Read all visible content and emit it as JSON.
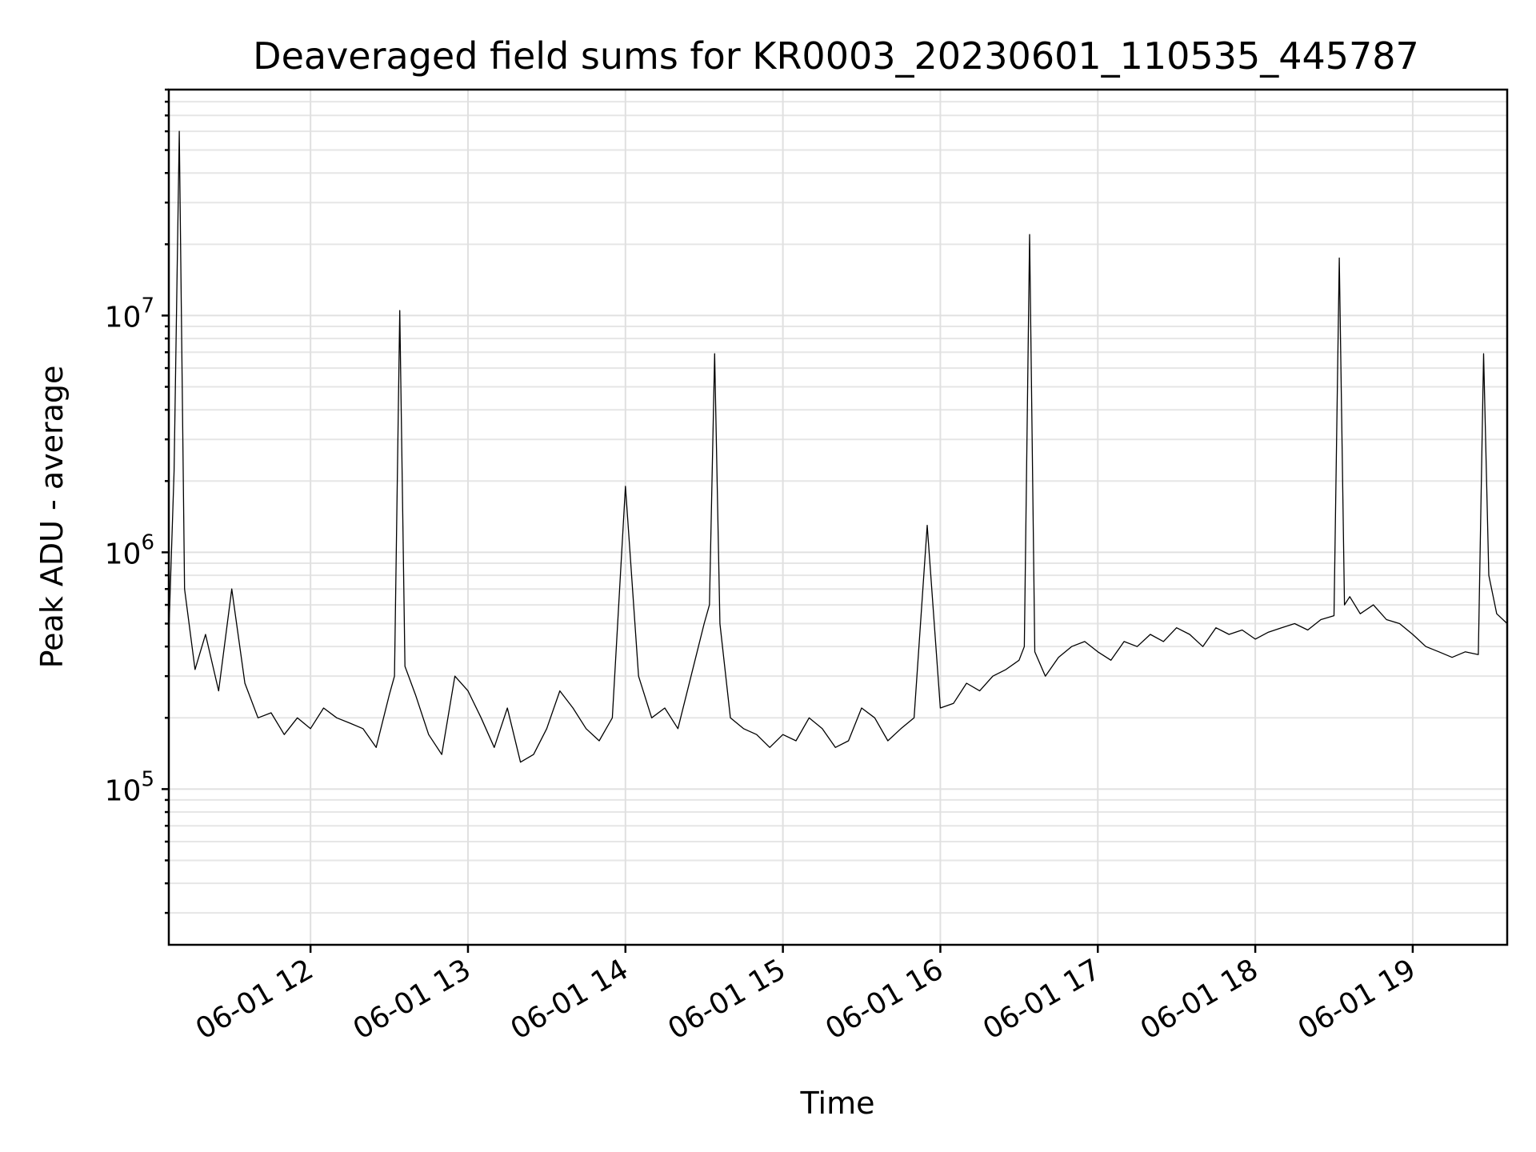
{
  "chart_data": {
    "type": "line",
    "title": "Deaveraged field sums for KR0003_20230601_110535_445787",
    "xlabel": "Time",
    "ylabel": "Peak ADU - average",
    "yscale": "log",
    "xlim": [
      "2023-06-01 11:06",
      "2023-06-01 19:36"
    ],
    "ylim": [
      22000,
      90000000
    ],
    "grid": true,
    "x_tick_labels": [
      "06-01 12",
      "06-01 13",
      "06-01 14",
      "06-01 15",
      "06-01 16",
      "06-01 17",
      "06-01 18",
      "06-01 19"
    ],
    "x_tick_values": [
      "2023-06-01 12:00",
      "2023-06-01 13:00",
      "2023-06-01 14:00",
      "2023-06-01 15:00",
      "2023-06-01 16:00",
      "2023-06-01 17:00",
      "2023-06-01 18:00",
      "2023-06-01 19:00"
    ],
    "y_tick_values": [
      100000,
      1000000,
      10000000
    ],
    "y_tick_labels": [
      {
        "base": "10",
        "exp": "5"
      },
      {
        "base": "10",
        "exp": "6"
      },
      {
        "base": "10",
        "exp": "7"
      }
    ],
    "series_color": "#000000",
    "series": [
      {
        "x": [
          "2023-06-01 11:06",
          "2023-06-01 11:08",
          "2023-06-01 11:10",
          "2023-06-01 11:12",
          "2023-06-01 11:16",
          "2023-06-01 11:20",
          "2023-06-01 11:25",
          "2023-06-01 11:30",
          "2023-06-01 11:35",
          "2023-06-01 11:40",
          "2023-06-01 11:45",
          "2023-06-01 11:50",
          "2023-06-01 11:55",
          "2023-06-01 12:00",
          "2023-06-01 12:05",
          "2023-06-01 12:10",
          "2023-06-01 12:15",
          "2023-06-01 12:20",
          "2023-06-01 12:25",
          "2023-06-01 12:30",
          "2023-06-01 12:32",
          "2023-06-01 12:34",
          "2023-06-01 12:36",
          "2023-06-01 12:40",
          "2023-06-01 12:45",
          "2023-06-01 12:50",
          "2023-06-01 12:55",
          "2023-06-01 13:00",
          "2023-06-01 13:05",
          "2023-06-01 13:10",
          "2023-06-01 13:15",
          "2023-06-01 13:20",
          "2023-06-01 13:25",
          "2023-06-01 13:30",
          "2023-06-01 13:35",
          "2023-06-01 13:40",
          "2023-06-01 13:45",
          "2023-06-01 13:50",
          "2023-06-01 13:55",
          "2023-06-01 14:00",
          "2023-06-01 14:05",
          "2023-06-01 14:10",
          "2023-06-01 14:15",
          "2023-06-01 14:20",
          "2023-06-01 14:25",
          "2023-06-01 14:30",
          "2023-06-01 14:32",
          "2023-06-01 14:34",
          "2023-06-01 14:36",
          "2023-06-01 14:40",
          "2023-06-01 14:45",
          "2023-06-01 14:50",
          "2023-06-01 14:55",
          "2023-06-01 15:00",
          "2023-06-01 15:05",
          "2023-06-01 15:10",
          "2023-06-01 15:15",
          "2023-06-01 15:20",
          "2023-06-01 15:25",
          "2023-06-01 15:30",
          "2023-06-01 15:35",
          "2023-06-01 15:40",
          "2023-06-01 15:45",
          "2023-06-01 15:50",
          "2023-06-01 15:55",
          "2023-06-01 16:00",
          "2023-06-01 16:05",
          "2023-06-01 16:10",
          "2023-06-01 16:15",
          "2023-06-01 16:20",
          "2023-06-01 16:25",
          "2023-06-01 16:30",
          "2023-06-01 16:32",
          "2023-06-01 16:34",
          "2023-06-01 16:36",
          "2023-06-01 16:40",
          "2023-06-01 16:45",
          "2023-06-01 16:50",
          "2023-06-01 16:55",
          "2023-06-01 17:00",
          "2023-06-01 17:05",
          "2023-06-01 17:10",
          "2023-06-01 17:15",
          "2023-06-01 17:20",
          "2023-06-01 17:25",
          "2023-06-01 17:30",
          "2023-06-01 17:35",
          "2023-06-01 17:40",
          "2023-06-01 17:45",
          "2023-06-01 17:50",
          "2023-06-01 17:55",
          "2023-06-01 18:00",
          "2023-06-01 18:05",
          "2023-06-01 18:10",
          "2023-06-01 18:15",
          "2023-06-01 18:20",
          "2023-06-01 18:25",
          "2023-06-01 18:30",
          "2023-06-01 18:32",
          "2023-06-01 18:34",
          "2023-06-01 18:36",
          "2023-06-01 18:40",
          "2023-06-01 18:45",
          "2023-06-01 18:50",
          "2023-06-01 18:55",
          "2023-06-01 19:00",
          "2023-06-01 19:05",
          "2023-06-01 19:10",
          "2023-06-01 19:15",
          "2023-06-01 19:20",
          "2023-06-01 19:25",
          "2023-06-01 19:27",
          "2023-06-01 19:29",
          "2023-06-01 19:32",
          "2023-06-01 19:36"
        ],
        "y": [
          450000,
          2200000,
          60000000,
          700000,
          320000,
          450000,
          260000,
          700000,
          280000,
          200000,
          210000,
          170000,
          200000,
          180000,
          220000,
          200000,
          190000,
          180000,
          150000,
          250000,
          300000,
          10500000,
          330000,
          250000,
          170000,
          140000,
          300000,
          260000,
          200000,
          150000,
          220000,
          130000,
          140000,
          180000,
          260000,
          220000,
          180000,
          160000,
          200000,
          1900000,
          300000,
          200000,
          220000,
          180000,
          300000,
          500000,
          600000,
          6900000,
          500000,
          200000,
          180000,
          170000,
          150000,
          170000,
          160000,
          200000,
          180000,
          150000,
          160000,
          220000,
          200000,
          160000,
          180000,
          200000,
          1300000,
          220000,
          230000,
          280000,
          260000,
          300000,
          320000,
          350000,
          400000,
          22000000,
          380000,
          300000,
          360000,
          400000,
          420000,
          380000,
          350000,
          420000,
          400000,
          450000,
          420000,
          480000,
          450000,
          400000,
          480000,
          450000,
          470000,
          430000,
          460000,
          480000,
          500000,
          470000,
          520000,
          540000,
          17500000,
          600000,
          650000,
          550000,
          600000,
          520000,
          500000,
          450000,
          400000,
          380000,
          360000,
          380000,
          370000,
          6900000,
          800000,
          550000,
          500000
        ]
      }
    ]
  }
}
